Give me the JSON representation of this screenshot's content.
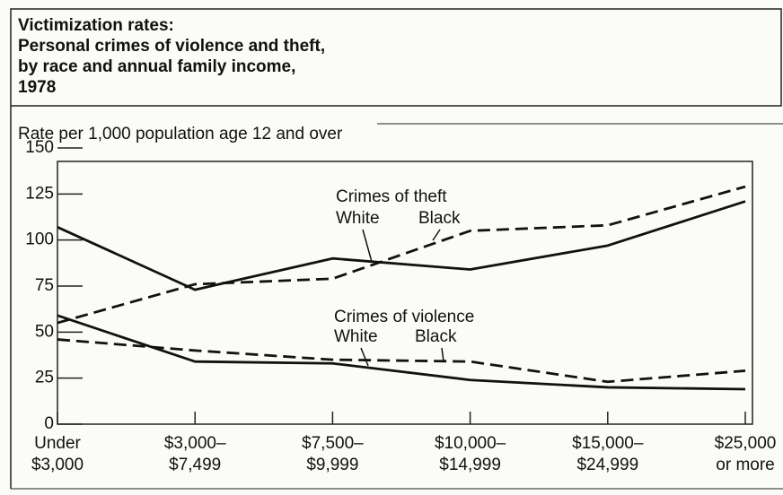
{
  "chart_data": {
    "type": "line",
    "title": [
      "Victimization rates:",
      "Personal crimes of violence and theft,",
      "by race and annual family income,",
      "1978"
    ],
    "ylabel": "Rate per 1,000 population age 12 and over",
    "categories": [
      "Under\n$3,000",
      "$3,000–\n$7,499",
      "$7,500–\n$9,999",
      "$10,000–\n$14,999",
      "$15,000–\n$24,999",
      "$25,000\nor more"
    ],
    "ylim": [
      0,
      150
    ],
    "yticks": [
      0,
      25,
      50,
      75,
      100,
      125,
      150
    ],
    "annotations": [
      "Crimes of theft",
      "Crimes of violence"
    ],
    "series": [
      {
        "name": "White",
        "color": "#111111",
        "style": "solid",
        "values": [
          107,
          73,
          90,
          84,
          97,
          121
        ]
      },
      {
        "name": "Black",
        "color": "#111111",
        "style": "dashed",
        "values": [
          55,
          76,
          79,
          105,
          108,
          129
        ]
      },
      {
        "name": "White",
        "color": "#111111",
        "style": "solid",
        "values": [
          59,
          34,
          33,
          24,
          20,
          19
        ]
      },
      {
        "name": "Black",
        "color": "#111111",
        "style": "dashed",
        "values": [
          46,
          40,
          35,
          34,
          23,
          29
        ]
      }
    ]
  }
}
